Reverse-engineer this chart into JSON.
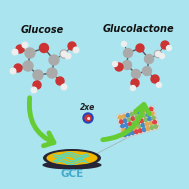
{
  "bg_color": "#aae4ee",
  "glucose_label": "Glucose",
  "glucolactone_label": "Glucolactone",
  "gce_label": "GCE",
  "two_e_label": "2xe",
  "arrow_color": "#66cc33",
  "arrow_lw": 4,
  "electrode_dark": "#252535",
  "electrode_gold": "#f0b800",
  "electrode_squiggle": "#40c8b8",
  "gce_label_color": "#44aacc",
  "nanobelt_bg": "#f5f2ec",
  "nanobelt_border": "#cccccc",
  "nanobelt_dot1": "#dd4444",
  "nanobelt_dot2": "#88bb66",
  "nanobelt_dot3": "#4488cc",
  "electron_color1": "#2244aa",
  "electron_color2": "#ee4444",
  "label_fontsize": 7,
  "gce_fontsize": 7.5,
  "two_e_fontsize": 5.5
}
